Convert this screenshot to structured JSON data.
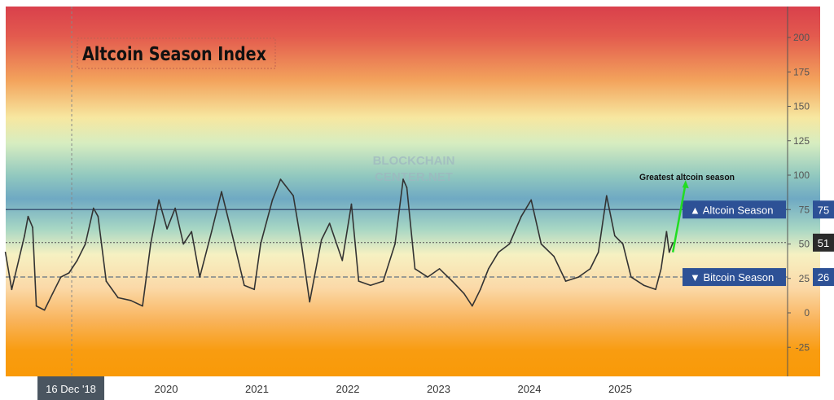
{
  "chart_data": {
    "type": "line",
    "title": "Altcoin Season Index",
    "watermark": [
      "BLOCKCHAIN",
      "CENTER.NET"
    ],
    "xlabel": "",
    "ylabel": "",
    "xlim": [
      2018.18,
      2026.9
    ],
    "ylim": [
      -46,
      222
    ],
    "y_ticks": [
      200,
      175,
      150,
      125,
      100,
      75,
      50,
      25,
      0,
      -25
    ],
    "x_ticks": [
      {
        "value": 2020,
        "label": "2020"
      },
      {
        "value": 2021,
        "label": "2021"
      },
      {
        "value": 2022,
        "label": "2022"
      },
      {
        "value": 2023,
        "label": "2023"
      },
      {
        "value": 2024,
        "label": "2024"
      },
      {
        "value": 2025,
        "label": "2025"
      }
    ],
    "crosshair": {
      "x": 2018.96,
      "label": "16 Dec '18"
    },
    "reference_lines": [
      {
        "name": "altcoin-season",
        "value": 75,
        "label": "▲ Altcoin Season",
        "value_label": "75",
        "style": "solid"
      },
      {
        "name": "current",
        "value": 51,
        "value_label": "51",
        "style": "dotted"
      },
      {
        "name": "bitcoin-season",
        "value": 26,
        "label": "▼ Bitcoin Season",
        "value_label": "26",
        "style": "dashed"
      }
    ],
    "annotation": {
      "text": "Greatest altcoin season",
      "arrow_from": [
        2025.58,
        44
      ],
      "arrow_to": [
        2025.72,
        94
      ]
    },
    "series": [
      {
        "name": "Altcoin Season Index",
        "points": [
          [
            2018.23,
            44
          ],
          [
            2018.3,
            17
          ],
          [
            2018.44,
            56
          ],
          [
            2018.48,
            70
          ],
          [
            2018.53,
            62
          ],
          [
            2018.57,
            5
          ],
          [
            2018.66,
            2
          ],
          [
            2018.75,
            14
          ],
          [
            2018.84,
            26
          ],
          [
            2018.93,
            29
          ],
          [
            2019.02,
            38
          ],
          [
            2019.11,
            50
          ],
          [
            2019.2,
            76
          ],
          [
            2019.25,
            70
          ],
          [
            2019.34,
            23
          ],
          [
            2019.47,
            11
          ],
          [
            2019.61,
            9
          ],
          [
            2019.74,
            5
          ],
          [
            2019.83,
            50
          ],
          [
            2019.92,
            82
          ],
          [
            2020.01,
            61
          ],
          [
            2020.1,
            76
          ],
          [
            2020.19,
            50
          ],
          [
            2020.28,
            59
          ],
          [
            2020.37,
            26
          ],
          [
            2020.5,
            59
          ],
          [
            2020.61,
            88
          ],
          [
            2020.73,
            56
          ],
          [
            2020.86,
            20
          ],
          [
            2020.97,
            17
          ],
          [
            2021.04,
            50
          ],
          [
            2021.17,
            82
          ],
          [
            2021.26,
            97
          ],
          [
            2021.4,
            85
          ],
          [
            2021.49,
            50
          ],
          [
            2021.58,
            8
          ],
          [
            2021.71,
            53
          ],
          [
            2021.8,
            65
          ],
          [
            2021.94,
            38
          ],
          [
            2022.04,
            79
          ],
          [
            2022.12,
            23
          ],
          [
            2022.25,
            20
          ],
          [
            2022.39,
            23
          ],
          [
            2022.52,
            50
          ],
          [
            2022.61,
            97
          ],
          [
            2022.65,
            91
          ],
          [
            2022.74,
            32
          ],
          [
            2022.88,
            26
          ],
          [
            2023.01,
            32
          ],
          [
            2023.15,
            23
          ],
          [
            2023.28,
            14
          ],
          [
            2023.37,
            5
          ],
          [
            2023.46,
            17
          ],
          [
            2023.55,
            32
          ],
          [
            2023.66,
            44
          ],
          [
            2023.78,
            50
          ],
          [
            2023.91,
            70
          ],
          [
            2024.02,
            82
          ],
          [
            2024.13,
            50
          ],
          [
            2024.27,
            41
          ],
          [
            2024.4,
            23
          ],
          [
            2024.54,
            26
          ],
          [
            2024.67,
            32
          ],
          [
            2024.76,
            44
          ],
          [
            2024.85,
            85
          ],
          [
            2024.94,
            56
          ],
          [
            2025.03,
            50
          ],
          [
            2025.12,
            26
          ],
          [
            2025.26,
            20
          ],
          [
            2025.39,
            17
          ],
          [
            2025.45,
            32
          ],
          [
            2025.51,
            59
          ],
          [
            2025.54,
            44
          ],
          [
            2025.58,
            51
          ]
        ]
      }
    ],
    "colors": {
      "line": "#333333",
      "label_box": "#2d5196",
      "value_box": "#2b2b2b",
      "arrow": "#22dd22",
      "crosshair_box": "#4a5560"
    }
  }
}
